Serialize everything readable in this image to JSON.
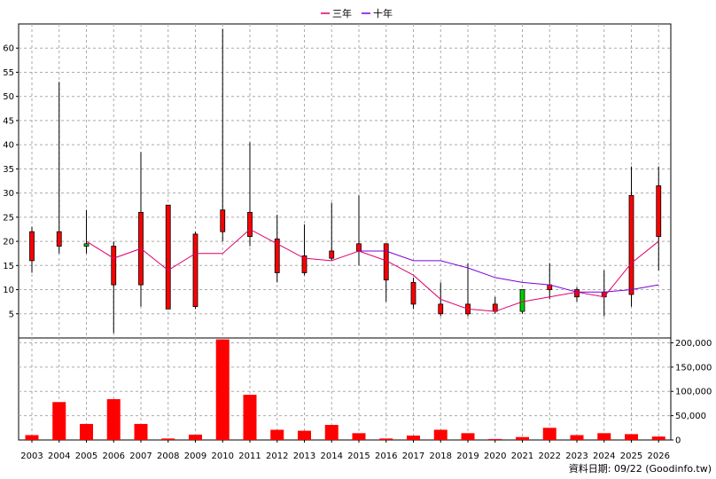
{
  "chart_data": {
    "type": "candlestick+line+bar",
    "legend": [
      {
        "name": "三年",
        "color": "#e0006a"
      },
      {
        "name": "十年",
        "color": "#7a00d9"
      }
    ],
    "legend_position": "top-center",
    "grid": true,
    "colors": {
      "up": "#ff0000",
      "down": "#00cc00",
      "volume": "#ff0000",
      "wick": "#000000"
    },
    "x_labels": [
      "2003",
      "2004",
      "2005",
      "2006",
      "2007",
      "2008",
      "2009",
      "2010",
      "2011",
      "2012",
      "2013",
      "2014",
      "2015",
      "2016",
      "2017",
      "2018",
      "2019",
      "2020",
      "2021",
      "2022",
      "2023",
      "2024",
      "2025",
      "2026"
    ],
    "price_axis": {
      "min": 0,
      "max": 65,
      "ticks": [
        5,
        10,
        15,
        20,
        25,
        30,
        35,
        40,
        45,
        50,
        55,
        60
      ],
      "side": "left"
    },
    "volume_axis": {
      "min": 0,
      "max": 210000,
      "ticks": [
        0,
        50000,
        100000,
        150000,
        200000
      ],
      "tick_labels": [
        "0",
        "50,000",
        "100,000",
        "150,000",
        "200,000"
      ],
      "side": "right"
    },
    "candles": [
      {
        "open": 16,
        "high": 23,
        "low": 13.5,
        "close": 22
      },
      {
        "open": 19,
        "high": 53,
        "low": 17.5,
        "close": 22
      },
      {
        "open": 19.5,
        "high": 26.5,
        "low": 17.5,
        "close": 19
      },
      {
        "open": 11,
        "high": 20,
        "low": 1,
        "close": 19
      },
      {
        "open": 11,
        "high": 38.5,
        "low": 6.5,
        "close": 26
      },
      {
        "open": 6,
        "high": 27.5,
        "low": 6,
        "close": 27.5
      },
      {
        "open": 6.5,
        "high": 22,
        "low": 6,
        "close": 21.5
      },
      {
        "open": 22,
        "high": 64,
        "low": 20,
        "close": 26.5
      },
      {
        "open": 21,
        "high": 40.5,
        "low": 19,
        "close": 26
      },
      {
        "open": 13.5,
        "high": 25.5,
        "low": 11.5,
        "close": 20.5
      },
      {
        "open": 13.5,
        "high": 23.5,
        "low": 13,
        "close": 17
      },
      {
        "open": 16.5,
        "high": 28,
        "low": 16,
        "close": 18
      },
      {
        "open": 18,
        "high": 29.5,
        "low": 15,
        "close": 19.5
      },
      {
        "open": 12,
        "high": 19.5,
        "low": 7.5,
        "close": 19.5
      },
      {
        "open": 7,
        "high": 12.5,
        "low": 6,
        "close": 11.5
      },
      {
        "open": 5,
        "high": 11.5,
        "low": 4.5,
        "close": 7
      },
      {
        "open": 5,
        "high": 15.5,
        "low": 4.5,
        "close": 7
      },
      {
        "open": 5.5,
        "high": 8.5,
        "low": 5,
        "close": 7
      },
      {
        "open": 10,
        "high": 10,
        "low": 5,
        "close": 5.5
      },
      {
        "open": 10,
        "high": 15.5,
        "low": 8,
        "close": 11
      },
      {
        "open": 8.5,
        "high": 10.5,
        "low": 7.5,
        "close": 10
      },
      {
        "open": 8.5,
        "high": 14,
        "low": 4.5,
        "close": 9.5
      },
      {
        "open": 9,
        "high": 35.5,
        "low": 6.5,
        "close": 29.5
      },
      {
        "open": 21,
        "high": 35.5,
        "low": 14,
        "close": 31.5
      }
    ],
    "series": [
      {
        "name": "三年",
        "values": [
          null,
          null,
          20,
          16.5,
          18.5,
          14,
          17.5,
          17.5,
          22.5,
          19.5,
          16.5,
          16,
          18,
          16,
          13,
          8,
          6,
          5.5,
          7.5,
          8.5,
          9.5,
          8.5,
          15.5,
          20
        ]
      },
      {
        "name": "十年",
        "values": [
          null,
          null,
          null,
          null,
          null,
          null,
          null,
          null,
          null,
          null,
          null,
          null,
          18,
          18,
          16,
          16,
          14.5,
          12.5,
          11.5,
          11,
          9.5,
          9.5,
          10,
          11
        ]
      }
    ],
    "volume": [
      10000,
      78000,
      33000,
      84000,
      33000,
      3000,
      11000,
      207000,
      93000,
      21000,
      19000,
      31000,
      14000,
      3000,
      9000,
      21000,
      14000,
      2000,
      6000,
      25000,
      10000,
      14000,
      12000,
      7000
    ]
  },
  "footer": {
    "text": "資料日期: 09/22 (Goodinfo.tw)"
  }
}
